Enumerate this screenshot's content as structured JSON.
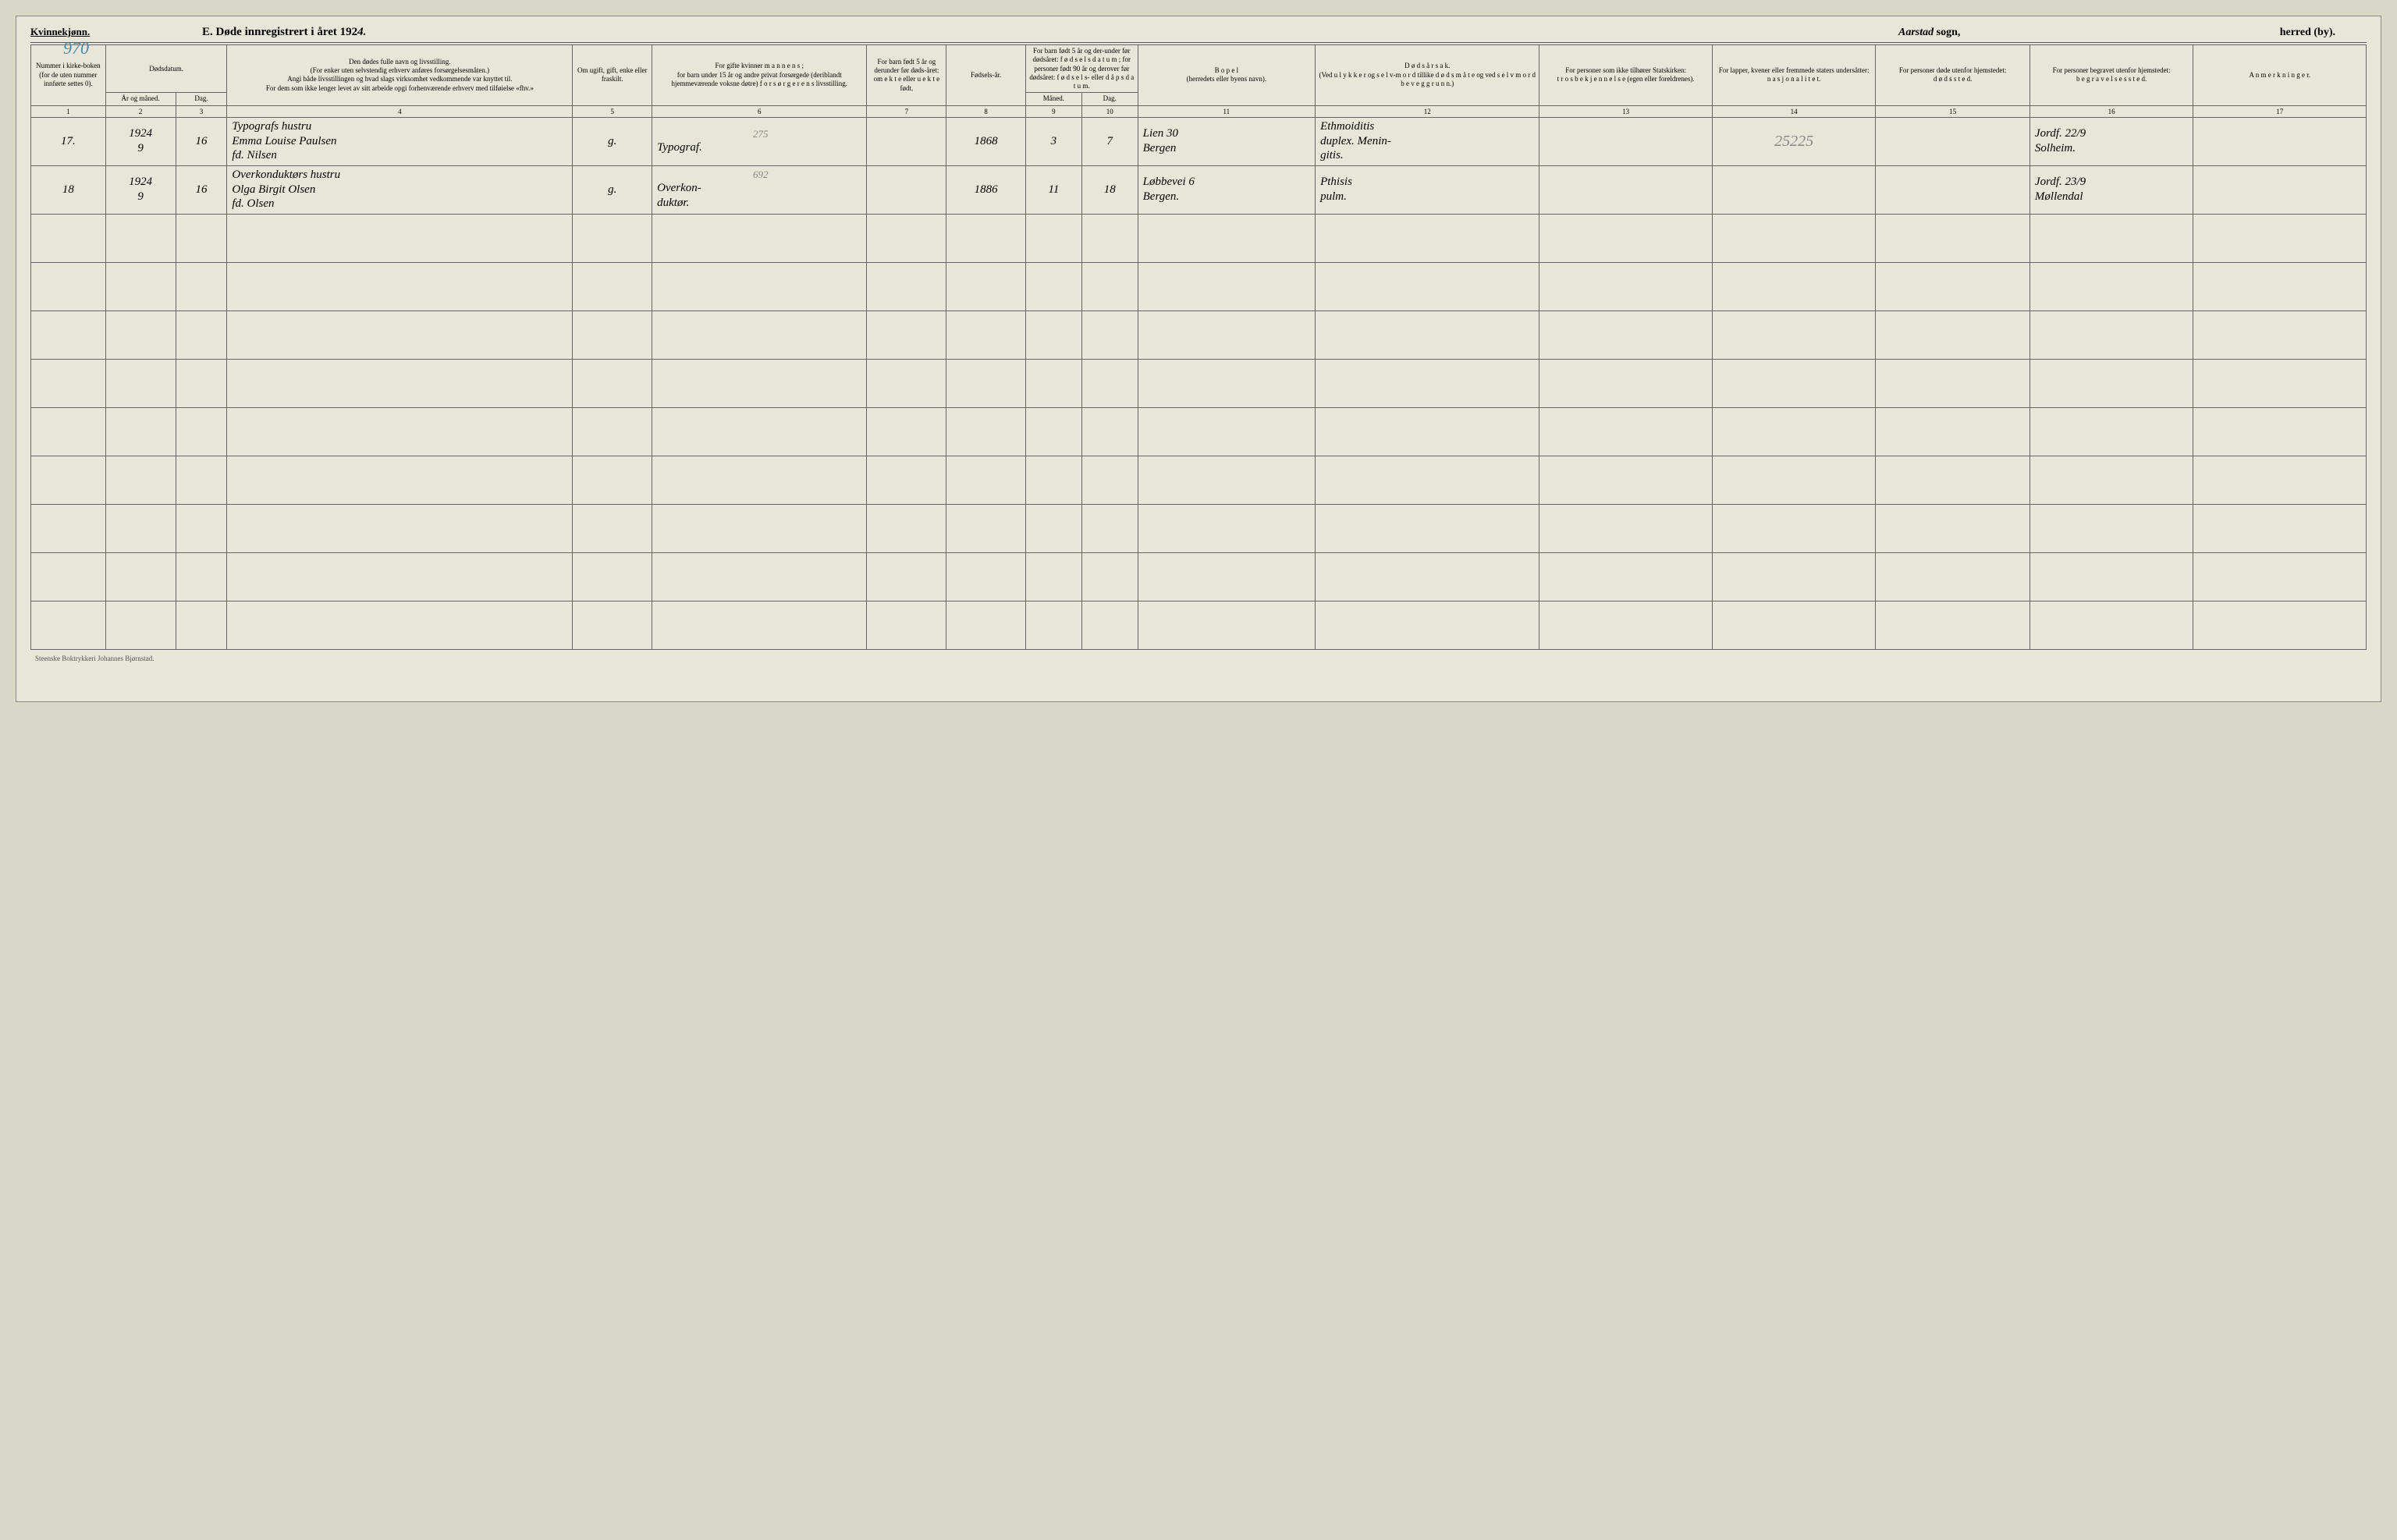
{
  "header": {
    "gender_label": "Kvinnekjønn.",
    "page_number": "970",
    "title_prefix": "E.   Døde innregistrert i året 192",
    "title_year_suffix": "4.",
    "sogn_name": "Aarstad",
    "sogn_label": " sogn,",
    "herred_label": "herred (by)."
  },
  "column_headers": {
    "c1": "Nummer i kirke-boken (for de uten nummer innførte settes 0).",
    "c2_top": "Dødsdatum.",
    "c2": "År og måned.",
    "c3": "Dag.",
    "c4": "Den dødes fulle navn og livsstilling.\n(For enker uten selvstendig erhverv anføres forsørgelsesmåten.)\nAngi både livsstillingen og hvad slags virksomhet vedkommende var knyttet til.\nFor dem som ikke lenger levet av sitt arbeide opgi forhenværende erhverv med tilføielse «fhv.»",
    "c5": "Om ugift, gift, enke eller fraskilt.",
    "c6": "For gifte kvinner m a n n e n s ;\nfor barn under 15 år og andre privat forsørgede (deriblandt hjemmeværende voksne døtre) f o r s ø r g e r e n s  livsstilling.",
    "c7": "For barn født 5 år og derunder før døds-året: om e k t e eller u e k t e født.",
    "c8": "Fødsels-år.",
    "c9_10_top": "For barn født 5 år og der-under før dødsåret: f ø d s e l s d a t u m ; for personer født 90 år og derover før dødsåret: f ø d s e l s-  eller d å p s d a t u m.",
    "c9": "Måned.",
    "c10": "Dag.",
    "c11": "B o p e l\n(herredets eller byens navn).",
    "c12": "D ø d s å r s a k.\n(Ved u l y k k e r  og s e l v-m o r d  tillike  d ø d s m å t e og ved  s e l v m o r d b e v e g g r u n n.)",
    "c13": "For personer som ikke tilhører Statskirken:\nt r o s b e k j e n n e l s e (egen eller foreldrenes).",
    "c14": "For lapper, kvener eller fremmede staters undersåtter:\nn a s j o n a l i t e t.",
    "c15": "For personer døde utenfor hjemstedet:\nd ø d s s t e d.",
    "c16": "For personer begravet utenfor hjemstedet:\nb e g r a v e l s e s s t e d.",
    "c17": "A n m e r k n i n g e r."
  },
  "column_numbers": [
    "1",
    "2",
    "3",
    "4",
    "5",
    "6",
    "7",
    "8",
    "9",
    "10",
    "11",
    "12",
    "13",
    "14",
    "15",
    "16",
    "17"
  ],
  "rows": [
    {
      "num": "17.",
      "year_month": "1924\n9",
      "day": "16",
      "name": "Typografs hustru\nEmma Louise Paulsen\nfd. Nilsen",
      "marital": "g.",
      "spouse_occ_pencil": "275",
      "spouse_occ": "Typograf.",
      "ekte": "",
      "birth_year": "1868",
      "birth_month": "3",
      "birth_day": "7",
      "residence": "Lien 30\nBergen",
      "cause": "Ethmoiditis\nduplex. Menin-\ngitis.",
      "faith": "",
      "nationality": "25225",
      "death_place": "",
      "burial": "Jordf. 22/9\nSolheim.",
      "remarks": ""
    },
    {
      "num": "18",
      "year_month": "1924\n9",
      "day": "16",
      "name": "Overkonduktørs hustru\nOlga Birgit Olsen\nfd. Olsen",
      "marital": "g.",
      "spouse_occ_pencil": "692",
      "spouse_occ": "Overkon-\nduktør.",
      "ekte": "",
      "birth_year": "1886",
      "birth_month": "11",
      "birth_day": "18",
      "residence": "Løbbevei 6\nBergen.",
      "cause": "Pthisis\npulm.",
      "faith": "",
      "nationality": "",
      "death_place": "",
      "burial": "Jordf. 23/9\nMøllendal",
      "remarks": ""
    }
  ],
  "empty_row_count": 9,
  "footer": "Steenske Boktrykkeri Johannes Bjørnstad.",
  "col_widths_pct": [
    3.2,
    3.0,
    2.2,
    14.8,
    3.4,
    9.2,
    3.4,
    3.4,
    2.4,
    2.4,
    7.6,
    9.6,
    7.4,
    7.0,
    6.6,
    7.0,
    7.4
  ],
  "colors": {
    "page_bg": "#e8e6d8",
    "border": "#666",
    "ink": "#2a2a2a",
    "pencil": "#888888",
    "blue_pencil": "#4a8aa8"
  }
}
